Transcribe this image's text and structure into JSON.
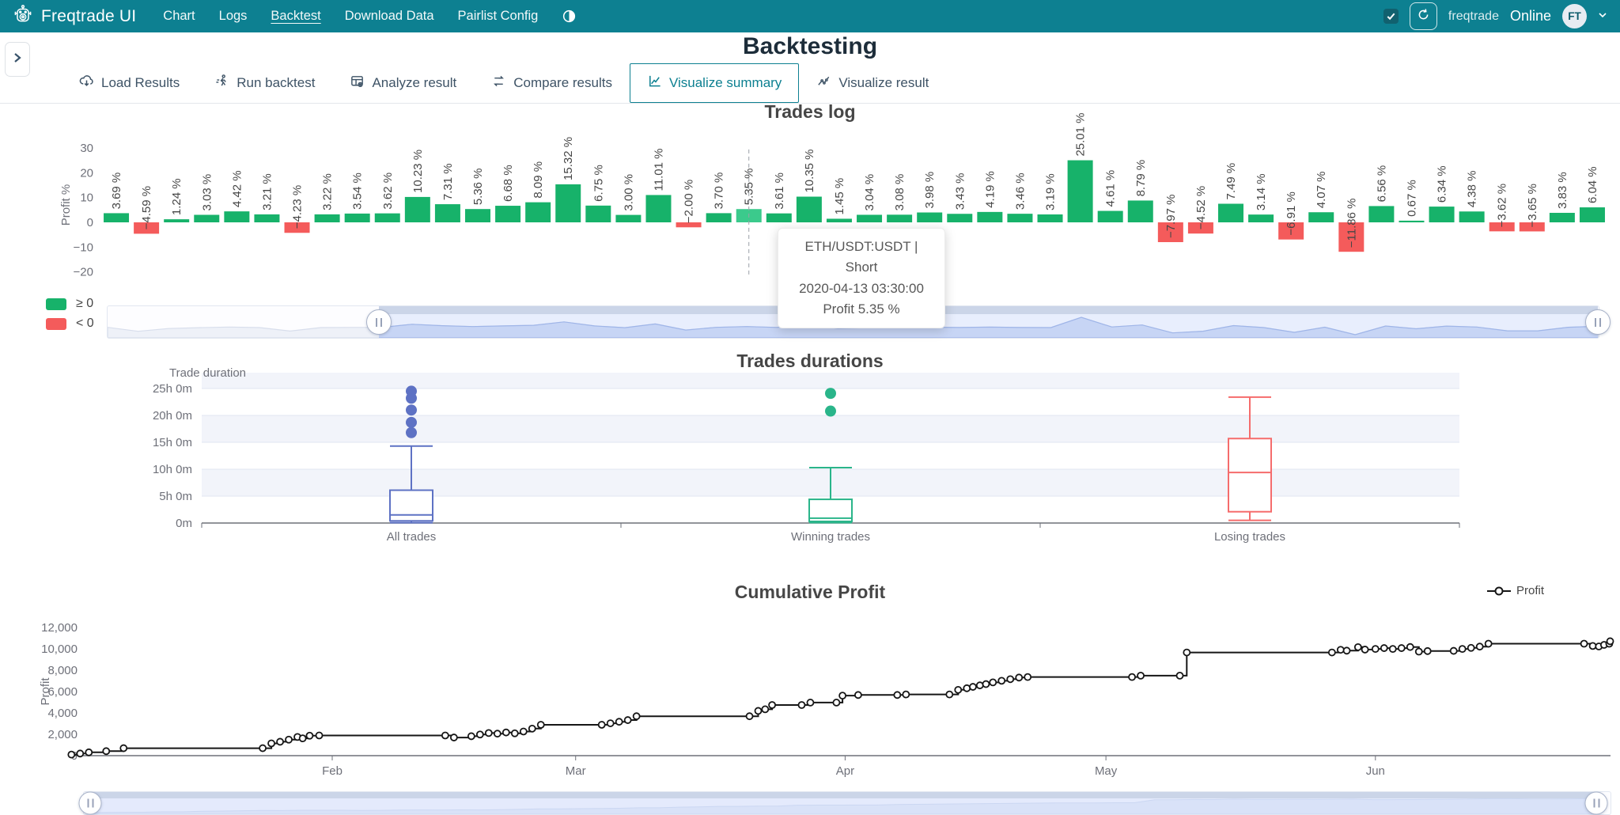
{
  "navbar": {
    "brand": "Freqtrade UI",
    "items": [
      {
        "label": "Chart",
        "active": false
      },
      {
        "label": "Logs",
        "active": false
      },
      {
        "label": "Backtest",
        "active": true
      },
      {
        "label": "Download Data",
        "active": false
      },
      {
        "label": "Pairlist Config",
        "active": false
      }
    ],
    "icons": [
      "robot-icon",
      "theme-toggle-icon",
      "refresh-icon",
      "chevron-down-icon"
    ],
    "right": {
      "checkbox_checked": true,
      "username": "freqtrade",
      "status": "Online",
      "avatar": "FT"
    }
  },
  "page": {
    "title": "Backtesting"
  },
  "tabs": [
    {
      "label": "Load Results",
      "icon": "cloud-download-icon",
      "active": false
    },
    {
      "label": "Run backtest",
      "icon": "run-icon",
      "active": false
    },
    {
      "label": "Analyze result",
      "icon": "analyze-icon",
      "active": false
    },
    {
      "label": "Compare results",
      "icon": "compare-icon",
      "active": false
    },
    {
      "label": "Visualize summary",
      "icon": "chart-line-icon",
      "active": true
    },
    {
      "label": "Visualize result",
      "icon": "chart-scatter-icon",
      "active": false
    }
  ],
  "colors": {
    "navbar_teal": "#0D8091",
    "positive_green": "#17B26A",
    "negative_red": "#F45B5B",
    "hover_green": "#3BCA8C",
    "box_blue": "#5E72C4",
    "box_green": "#2AB58A",
    "box_red": "#F56C6C",
    "line_black": "#161616",
    "axis_gray": "#6E7079",
    "grid_gray": "#E0E6F1",
    "band_fill": "#F2F4FA"
  },
  "chart_data": [
    {
      "type": "bar",
      "title": "Trades log",
      "ylabel": "Profit %",
      "yticks": [
        30,
        20,
        10,
        0,
        -10,
        -20
      ],
      "ylim": [
        -24,
        38
      ],
      "values": [
        3.69,
        -4.59,
        1.24,
        3.03,
        4.42,
        3.21,
        -4.23,
        3.22,
        3.54,
        3.62,
        10.23,
        7.31,
        5.36,
        6.68,
        8.09,
        15.32,
        6.75,
        3.0,
        11.01,
        -2.0,
        3.7,
        5.35,
        3.61,
        10.35,
        1.45,
        3.04,
        3.08,
        3.98,
        3.43,
        4.19,
        3.46,
        3.19,
        25.01,
        4.61,
        8.79,
        -7.97,
        -4.52,
        7.49,
        3.14,
        -6.91,
        4.07,
        -11.86,
        6.56,
        0.67,
        6.34,
        4.38,
        -3.62,
        -3.65,
        3.83,
        6.04
      ],
      "label_suffix": " %",
      "hover_index": 21,
      "grid": false,
      "legend": [
        {
          "label": "≥ 0",
          "color": "#17B26A"
        },
        {
          "label": "< 0",
          "color": "#F45B5B"
        }
      ],
      "tooltip": {
        "line1": "ETH/USDT:USDT | Short",
        "line2": "2020-04-13 03:30:00",
        "line3": "Profit 5.35 %"
      }
    },
    {
      "type": "boxplot",
      "title": "Trades durations",
      "axis_name": "Trade duration",
      "ytick_labels": [
        "0m",
        "5h 0m",
        "10h 0m",
        "15h 0m",
        "20h 0m",
        "25h 0m"
      ],
      "ytick_hours": [
        0,
        5,
        10,
        15,
        20,
        25
      ],
      "categories": [
        "All trades",
        "Winning trades",
        "Losing trades"
      ],
      "series": [
        {
          "name": "All trades",
          "color": "#5E72C4",
          "min": 0.05,
          "q1": 0.4,
          "median": 1.5,
          "q3": 6.1,
          "max": 14.3,
          "outliers": [
            16.8,
            18.7,
            21.0,
            23.2,
            24.5
          ]
        },
        {
          "name": "Winning trades",
          "color": "#2AB58A",
          "min": 0.08,
          "q1": 0.3,
          "median": 0.9,
          "q3": 4.4,
          "max": 10.3,
          "outliers": [
            20.8,
            24.1
          ]
        },
        {
          "name": "Losing trades",
          "color": "#F56C6C",
          "min": 0.5,
          "q1": 2.1,
          "median": 9.4,
          "q3": 15.7,
          "max": 23.4,
          "outliers": []
        }
      ],
      "unit": "hours",
      "grid": true
    },
    {
      "type": "line",
      "title": "Cumulative Profit",
      "ylabel": "Profit",
      "legend": "Profit",
      "step": true,
      "yticks": [
        0,
        2000,
        4000,
        6000,
        8000,
        10000,
        12000
      ],
      "ytick_labels": [
        "0",
        "2,000",
        "4,000",
        "6,000",
        "8,000",
        "10,000",
        "12,000"
      ],
      "xticks": [
        "Feb",
        "Mar",
        "Apr",
        "May",
        "Jun"
      ],
      "xtick_days": [
        32,
        60,
        91,
        121,
        152
      ],
      "xlim_days": [
        2,
        180
      ],
      "grid": false,
      "points": [
        [
          2,
          100
        ],
        [
          3,
          200
        ],
        [
          4,
          310
        ],
        [
          6,
          420
        ],
        [
          8,
          700
        ],
        [
          24,
          700
        ],
        [
          25,
          1150
        ],
        [
          26,
          1300
        ],
        [
          27,
          1500
        ],
        [
          28,
          1750
        ],
        [
          28.6,
          1620
        ],
        [
          29.4,
          1870
        ],
        [
          30.5,
          1890
        ],
        [
          45,
          1890
        ],
        [
          46,
          1700
        ],
        [
          48,
          1820
        ],
        [
          49,
          1980
        ],
        [
          50,
          2120
        ],
        [
          51,
          2060
        ],
        [
          52,
          2170
        ],
        [
          53,
          2090
        ],
        [
          54,
          2260
        ],
        [
          55,
          2530
        ],
        [
          56,
          2890
        ],
        [
          63,
          2890
        ],
        [
          64,
          3030
        ],
        [
          65,
          3170
        ],
        [
          66,
          3330
        ],
        [
          67,
          3690
        ],
        [
          80,
          3690
        ],
        [
          81,
          4190
        ],
        [
          81.8,
          4340
        ],
        [
          82.6,
          4740
        ],
        [
          86,
          4740
        ],
        [
          87,
          4970
        ],
        [
          90,
          4970
        ],
        [
          90.7,
          5620
        ],
        [
          92.5,
          5680
        ],
        [
          97,
          5680
        ],
        [
          98,
          5730
        ],
        [
          103,
          5730
        ],
        [
          104,
          6160
        ],
        [
          105,
          6310
        ],
        [
          105.7,
          6440
        ],
        [
          106.5,
          6580
        ],
        [
          107.2,
          6700
        ],
        [
          108,
          6860
        ],
        [
          109,
          7010
        ],
        [
          110,
          7160
        ],
        [
          111,
          7310
        ],
        [
          112,
          7360
        ],
        [
          124,
          7360
        ],
        [
          125,
          7490
        ],
        [
          129.5,
          7490
        ],
        [
          130.3,
          9660
        ],
        [
          147,
          9660
        ],
        [
          148,
          9910
        ],
        [
          148.7,
          9830
        ],
        [
          150,
          10160
        ],
        [
          150.8,
          9930
        ],
        [
          152,
          9990
        ],
        [
          153,
          10070
        ],
        [
          154,
          9990
        ],
        [
          155,
          10070
        ],
        [
          156,
          10170
        ],
        [
          157,
          9740
        ],
        [
          158,
          9790
        ],
        [
          161,
          9810
        ],
        [
          162,
          9990
        ],
        [
          163,
          10090
        ],
        [
          164,
          10210
        ],
        [
          165,
          10480
        ],
        [
          176,
          10480
        ],
        [
          177,
          10270
        ],
        [
          177.7,
          10220
        ],
        [
          178.3,
          10370
        ],
        [
          178.9,
          10480
        ],
        [
          179,
          10710
        ]
      ]
    }
  ]
}
